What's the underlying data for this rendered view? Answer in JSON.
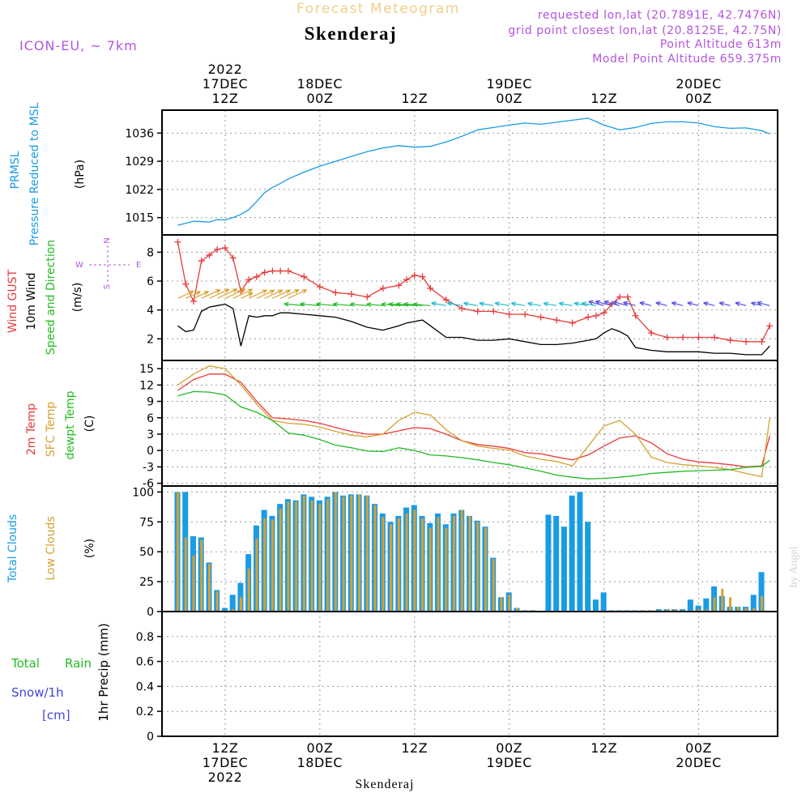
{
  "header": {
    "title": "Forecast Meteogram",
    "location": "Skenderaj",
    "model": "ICON-EU, ~ 7km",
    "requested": "requested lon,lat (20.7891E, 42.7476N)",
    "gridpoint": "grid point closest lon,lat (20.8125E, 42.75N)",
    "point_alt": "Point Altitude 613m",
    "model_alt": "Model Point Altitude 659.375m",
    "footer": "Skenderaj",
    "watermark": "by Angel"
  },
  "colors": {
    "pressure": "#1a9be6",
    "gust": "#e83a3a",
    "wind": "#000000",
    "dir": "#22bb22",
    "t2m": "#e83a3a",
    "sfc": "#d8a030",
    "dew": "#22bb22",
    "total_clouds": "#1a9be6",
    "low_clouds": "#d8a030",
    "rain": "#22bb22",
    "snow": "#4444dd",
    "purple": "#b455dd"
  },
  "time_axis": {
    "top_ticks": [
      {
        "h": 12,
        "l1": "2022",
        "l2": "17DEC",
        "l3": "12Z"
      },
      {
        "h": 24,
        "l1": "",
        "l2": "18DEC",
        "l3": "00Z"
      },
      {
        "h": 36,
        "l1": "",
        "l2": "",
        "l3": "12Z"
      },
      {
        "h": 48,
        "l1": "",
        "l2": "19DEC",
        "l3": "00Z"
      },
      {
        "h": 60,
        "l1": "",
        "l2": "",
        "l3": "12Z"
      },
      {
        "h": 72,
        "l1": "",
        "l2": "20DEC",
        "l3": "00Z"
      }
    ],
    "bottom_ticks": [
      {
        "h": 12,
        "l1": "12Z",
        "l2": "17DEC",
        "l3": "2022"
      },
      {
        "h": 24,
        "l1": "00Z",
        "l2": "18DEC",
        "l3": ""
      },
      {
        "h": 36,
        "l1": "12Z",
        "l2": "",
        "l3": ""
      },
      {
        "h": 48,
        "l1": "00Z",
        "l2": "19DEC",
        "l3": ""
      },
      {
        "h": 60,
        "l1": "12Z",
        "l2": "",
        "l3": ""
      },
      {
        "h": 72,
        "l1": "00Z",
        "l2": "20DEC",
        "l3": ""
      }
    ]
  },
  "panels": {
    "pressure": {
      "label1": "PRMSL",
      "label2": "Pressure Reduced to MSL",
      "unit": "(hPa)"
    },
    "wind": {
      "label_gust": "Wind GUST",
      "label_wind": "10m Wind",
      "label_dir": "Speed and Direction",
      "unit": "(m/s)",
      "compass_n": "N",
      "compass_s": "S",
      "compass_w": "W",
      "compass_e": "E"
    },
    "temp": {
      "label1": "2m Temp",
      "label2": "SFC Temp",
      "label3": "dewpt Temp",
      "unit": "(C)"
    },
    "clouds": {
      "label1": "Total Clouds",
      "label2": "Low Clouds",
      "unit": "(%)"
    },
    "precip": {
      "label1": "Total",
      "label1b": "Rain",
      "label2": "Snow/1h",
      "label3": "[cm]",
      "unit": "1hr Precip (mm)"
    }
  },
  "chart_data": [
    {
      "type": "line",
      "title": "PRMSL Pressure Reduced to MSL",
      "ylabel": "hPa",
      "ylim": [
        1010.7,
        1041.7
      ],
      "yticks": [
        1015,
        1022,
        1029,
        1036
      ],
      "x": [
        6,
        8,
        10,
        11,
        12,
        13,
        14,
        15,
        16,
        17,
        18,
        19,
        20,
        22,
        24,
        26,
        28,
        30,
        32,
        34,
        36,
        38,
        40,
        42,
        44,
        46,
        48,
        50,
        52,
        54,
        56,
        58,
        60,
        62,
        64,
        66,
        68,
        70,
        72,
        74,
        76,
        78,
        80,
        81
      ],
      "series": [
        {
          "name": "PRMSL",
          "values": [
            1013.1,
            1014.1,
            1013.9,
            1014.5,
            1014.4,
            1015.0,
            1015.8,
            1017.0,
            1019.0,
            1021.2,
            1022.5,
            1023.5,
            1024.6,
            1026.3,
            1027.8,
            1029.0,
            1030.2,
            1031.4,
            1032.3,
            1032.9,
            1032.5,
            1032.7,
            1033.8,
            1035.2,
            1036.8,
            1037.4,
            1038.0,
            1038.5,
            1038.2,
            1038.7,
            1039.2,
            1039.7,
            1038.0,
            1036.8,
            1037.4,
            1038.4,
            1038.8,
            1038.8,
            1038.5,
            1037.6,
            1037.2,
            1037.3,
            1036.6,
            1035.8
          ]
        }
      ]
    },
    {
      "type": "line",
      "title": "Wind GUST / 10m Wind Speed and Direction",
      "ylabel": "m/s",
      "ylim": [
        0.5,
        9.2
      ],
      "yticks": [
        2,
        4,
        6,
        8
      ],
      "x": [
        6,
        7,
        8,
        9,
        10,
        11,
        12,
        13,
        14,
        15,
        16,
        17,
        18,
        19,
        20,
        22,
        24,
        26,
        28,
        30,
        32,
        34,
        35,
        36,
        37,
        38,
        40,
        42,
        44,
        46,
        48,
        50,
        52,
        54,
        56,
        58,
        59,
        60,
        61,
        62,
        63,
        64,
        66,
        68,
        70,
        72,
        74,
        76,
        78,
        80,
        81
      ],
      "series": [
        {
          "name": "Wind GUST",
          "values": [
            8.7,
            5.8,
            4.6,
            7.4,
            7.8,
            8.2,
            8.3,
            7.6,
            5.3,
            6.1,
            6.3,
            6.6,
            6.7,
            6.7,
            6.7,
            6.3,
            5.6,
            5.2,
            5.1,
            4.9,
            5.5,
            5.7,
            6.1,
            6.4,
            6.3,
            5.5,
            4.7,
            4.1,
            3.9,
            3.9,
            3.7,
            3.7,
            3.5,
            3.3,
            3.1,
            3.5,
            3.6,
            3.8,
            4.4,
            4.9,
            4.9,
            3.6,
            2.4,
            2.1,
            2.1,
            2.1,
            2.1,
            1.9,
            1.8,
            1.8,
            2.9
          ]
        },
        {
          "name": "10m Wind",
          "values": [
            2.9,
            2.5,
            2.6,
            3.9,
            4.2,
            4.3,
            4.4,
            4.1,
            1.5,
            3.6,
            3.5,
            3.6,
            3.6,
            3.8,
            3.8,
            3.7,
            3.6,
            3.5,
            3.2,
            2.8,
            2.6,
            2.9,
            3.1,
            3.2,
            3.3,
            2.9,
            2.1,
            2.1,
            1.9,
            1.9,
            2.0,
            1.8,
            1.6,
            1.6,
            1.7,
            1.9,
            2.0,
            2.4,
            2.7,
            2.5,
            2.2,
            1.4,
            1.2,
            1.1,
            1.1,
            1.1,
            1.0,
            1.0,
            0.9,
            0.9,
            1.5
          ]
        }
      ]
    },
    {
      "type": "line",
      "title": "2m Temp / SFC Temp / dewpt Temp",
      "ylabel": "C",
      "ylim": [
        -6.5,
        16.5
      ],
      "yticks": [
        -6,
        -3,
        0,
        3,
        6,
        9,
        12,
        15
      ],
      "x": [
        6,
        8,
        10,
        12,
        14,
        16,
        18,
        20,
        22,
        24,
        26,
        28,
        30,
        32,
        34,
        36,
        38,
        40,
        42,
        44,
        46,
        48,
        50,
        52,
        54,
        56,
        58,
        60,
        62,
        64,
        66,
        68,
        70,
        72,
        74,
        76,
        78,
        80,
        81
      ],
      "series": [
        {
          "name": "2m Temp",
          "values": [
            11.0,
            13.0,
            14.0,
            14.0,
            12.5,
            9.0,
            6.0,
            5.8,
            5.5,
            5.0,
            4.2,
            3.5,
            3.0,
            3.0,
            3.6,
            4.2,
            4.0,
            3.0,
            1.8,
            1.1,
            0.8,
            0.4,
            -0.4,
            -0.6,
            -1.2,
            -1.7,
            -0.8,
            0.8,
            2.3,
            2.7,
            1.4,
            -0.6,
            -1.6,
            -2.1,
            -2.3,
            -2.6,
            -3.0,
            -2.8,
            2.7
          ]
        },
        {
          "name": "SFC Temp",
          "values": [
            12.0,
            14.0,
            15.5,
            15.0,
            12.0,
            8.5,
            5.5,
            5.0,
            4.8,
            4.3,
            3.5,
            2.8,
            2.5,
            3.0,
            5.5,
            7.0,
            6.5,
            3.8,
            1.8,
            0.8,
            0.4,
            0.1,
            -1.0,
            -1.6,
            -2.0,
            -2.8,
            0.8,
            4.5,
            5.5,
            3.0,
            -1.2,
            -2.2,
            -2.6,
            -2.8,
            -3.1,
            -3.5,
            -4.2,
            -4.8,
            6.0
          ]
        },
        {
          "name": "dewpt Temp",
          "values": [
            10.0,
            10.8,
            10.7,
            10.2,
            8.0,
            7.0,
            5.5,
            3.2,
            2.8,
            2.0,
            1.0,
            0.5,
            -0.1,
            -0.2,
            0.5,
            0.0,
            -0.8,
            -1.0,
            -1.3,
            -1.7,
            -2.2,
            -2.6,
            -3.2,
            -3.8,
            -4.5,
            -4.9,
            -5.2,
            -5.1,
            -4.9,
            -4.6,
            -4.2,
            -4.0,
            -3.8,
            -3.7,
            -3.6,
            -3.5,
            -3.1,
            -2.9,
            -1.8
          ]
        }
      ]
    },
    {
      "type": "bar",
      "title": "Total Clouds / Low Clouds",
      "ylabel": "%",
      "ylim": [
        0,
        105
      ],
      "yticks": [
        0,
        25,
        50,
        75,
        100
      ],
      "x": [
        6,
        7,
        8,
        9,
        10,
        11,
        12,
        13,
        14,
        15,
        16,
        17,
        18,
        19,
        20,
        21,
        22,
        23,
        24,
        25,
        26,
        27,
        28,
        29,
        30,
        31,
        32,
        33,
        34,
        35,
        36,
        37,
        38,
        39,
        40,
        41,
        42,
        43,
        44,
        45,
        46,
        47,
        48,
        49,
        50,
        51,
        52,
        53,
        54,
        55,
        56,
        57,
        58,
        59,
        60,
        61,
        62,
        63,
        64,
        65,
        66,
        67,
        68,
        69,
        70,
        71,
        72,
        73,
        74,
        75,
        76,
        77,
        78,
        79,
        80,
        81
      ],
      "series": [
        {
          "name": "Total Clouds",
          "values": [
            100,
            100,
            63,
            62,
            41,
            18,
            3,
            14,
            24,
            48,
            72,
            85,
            80,
            90,
            94,
            93,
            98,
            96,
            93,
            96,
            100,
            97,
            98,
            98,
            97,
            90,
            82,
            75,
            80,
            87,
            89,
            80,
            74,
            82,
            73,
            82,
            85,
            80,
            76,
            71,
            45,
            12,
            16,
            3,
            1,
            1,
            0,
            81,
            80,
            71,
            97,
            100,
            75,
            10,
            16,
            1,
            1,
            1,
            1,
            1,
            1,
            2,
            2,
            2,
            2,
            10,
            5,
            11,
            21,
            13,
            4,
            4,
            4,
            14,
            33,
            0
          ]
        },
        {
          "name": "Low Clouds",
          "values": [
            100,
            62,
            47,
            60,
            40,
            17,
            1,
            2,
            12,
            36,
            61,
            78,
            77,
            86,
            92,
            92,
            97,
            93,
            90,
            94,
            100,
            96,
            97,
            98,
            97,
            89,
            79,
            73,
            78,
            82,
            85,
            78,
            70,
            79,
            70,
            80,
            85,
            80,
            75,
            70,
            44,
            12,
            14,
            3,
            0,
            0,
            0,
            0,
            0,
            0,
            0,
            0,
            0,
            0,
            0,
            0,
            0,
            0,
            1,
            1,
            1,
            1,
            2,
            2,
            1,
            1,
            2,
            2,
            12,
            19,
            12,
            4,
            3,
            3,
            13,
            0
          ]
        }
      ]
    },
    {
      "type": "bar",
      "title": "1hr Precip",
      "ylabel": "1hr Precip (mm)",
      "ylim": [
        0,
        1
      ],
      "yticks": [
        0,
        0.2,
        0.4,
        0.6,
        0.8
      ],
      "ytick_labels": [
        "0",
        "0.2",
        "0.4",
        "0.6",
        "0.8"
      ],
      "series": [
        {
          "name": "Total Rain",
          "values": []
        },
        {
          "name": "Snow/1h",
          "values": []
        }
      ]
    }
  ]
}
